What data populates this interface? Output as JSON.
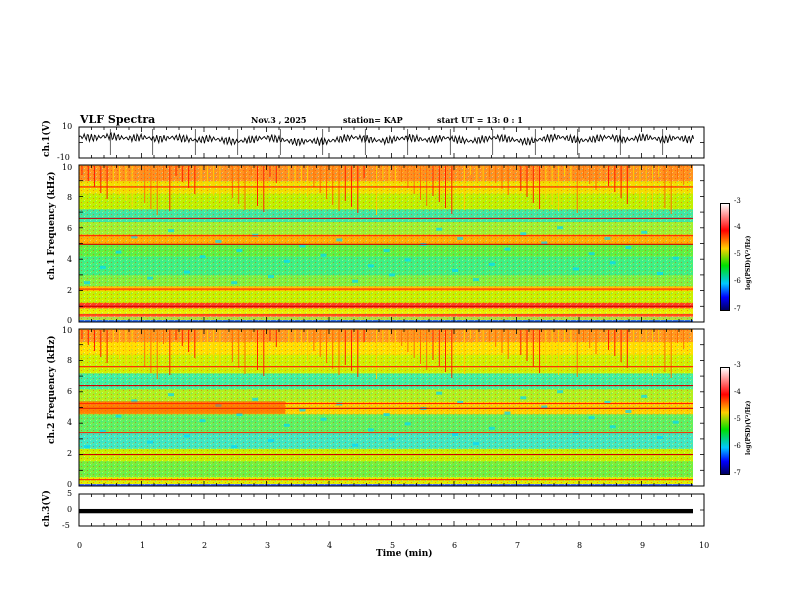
{
  "header": {
    "title": "VLF Spectra",
    "date": "Nov.3 , 2025",
    "station": "station= KAP",
    "start": "start UT = 13: 0 : 1"
  },
  "chart_data": [
    {
      "type": "line",
      "name": "ch1-waveform",
      "ylabel": "ch.1(V)",
      "ylim": [
        -10,
        10
      ],
      "yticks": [
        "10",
        "-10"
      ],
      "x_range_min": [
        0,
        9.85
      ],
      "values": [
        3.5,
        3.8,
        2.9,
        3.2,
        3.9,
        4.1,
        3.6,
        3.0,
        2.7,
        2.9,
        3.4,
        3.1,
        2.5,
        2.2,
        2.8,
        3.3,
        3.0,
        2.4,
        1.8,
        1.5,
        1.9,
        2.6,
        2.2,
        1.6,
        1.1,
        0.6,
        0.9,
        1.5,
        2.0,
        2.7,
        3.2,
        2.8,
        2.2,
        1.5,
        0.8,
        0.3,
        0.6,
        1.2,
        0.9,
        0.4,
        0.7,
        1.5,
        2.2,
        2.9,
        3.4,
        3.0,
        2.4,
        1.8,
        1.3,
        1.0,
        1.6,
        2.3,
        2.8,
        3.1,
        2.7,
        2.1,
        1.6,
        1.9,
        2.6,
        3.0,
        2.4,
        1.7,
        1.2,
        0.8,
        1.4,
        2.1,
        2.7,
        3.3,
        2.9,
        2.3,
        1.6,
        1.0,
        0.5,
        1.1,
        1.9,
        2.6,
        3.2,
        3.6,
        3.1,
        2.5,
        1.8,
        1.3,
        1.7,
        2.4,
        3.0,
        3.5,
        3.1,
        2.4,
        1.8,
        2.2,
        2.9,
        3.4,
        3.0,
        2.3,
        1.8,
        2.5,
        3.1,
        2.6,
        2.0,
        2.8
      ]
    },
    {
      "type": "heatmap",
      "name": "ch1-spectrogram",
      "ylabel": "ch.1 Frequency (kHz)",
      "ylim": [
        0,
        10
      ],
      "yticks": [
        "0",
        "2",
        "4",
        "6",
        "8",
        "10"
      ],
      "colorbar": {
        "label": "log(PSD)(V²/Hz)",
        "range": [
          -7,
          -3
        ],
        "ticks": [
          "-3",
          "-4",
          "-5",
          "-6",
          "-7"
        ]
      },
      "bands": [
        {
          "f0": 0.0,
          "f1": 0.15,
          "color": "#2060ff"
        },
        {
          "f0": 0.15,
          "f1": 0.35,
          "color": "#b0e040"
        },
        {
          "f0": 0.35,
          "f1": 0.55,
          "color": "#ff8040"
        },
        {
          "f0": 0.55,
          "f1": 0.9,
          "color": "#e8f000"
        },
        {
          "f0": 0.9,
          "f1": 1.25,
          "color": "#ff4020"
        },
        {
          "f0": 1.25,
          "f1": 2.0,
          "color": "#c8f000"
        },
        {
          "f0": 2.0,
          "f1": 2.3,
          "color": "#ffc000"
        },
        {
          "f0": 2.3,
          "f1": 3.0,
          "color": "#80f040"
        },
        {
          "f0": 3.0,
          "f1": 4.2,
          "color": "#40f080"
        },
        {
          "f0": 4.2,
          "f1": 5.0,
          "color": "#60f040"
        },
        {
          "f0": 5.0,
          "f1": 5.6,
          "color": "#ffb000"
        },
        {
          "f0": 5.6,
          "f1": 6.4,
          "color": "#a0f030"
        },
        {
          "f0": 6.4,
          "f1": 7.2,
          "color": "#40e8a0"
        },
        {
          "f0": 7.2,
          "f1": 8.2,
          "color": "#c0f000"
        },
        {
          "f0": 8.2,
          "f1": 9.0,
          "color": "#f0e000"
        },
        {
          "f0": 9.0,
          "f1": 10.0,
          "color": "#ff9020"
        }
      ],
      "lines_khz": [
        0.45,
        1.0,
        2.1,
        4.95,
        5.5,
        6.6,
        8.6
      ]
    },
    {
      "type": "heatmap",
      "name": "ch2-spectrogram",
      "ylabel": "ch.2 Frequency (kHz)",
      "ylim": [
        0,
        10
      ],
      "yticks": [
        "0",
        "2",
        "4",
        "6",
        "8",
        "10"
      ],
      "colorbar": {
        "label": "log(PSD)(V²/Hz)",
        "range": [
          -7,
          -3
        ],
        "ticks": [
          "-3",
          "-4",
          "-5",
          "-6",
          "-7"
        ]
      },
      "bands": [
        {
          "f0": 0.0,
          "f1": 0.15,
          "color": "#3050ff"
        },
        {
          "f0": 0.15,
          "f1": 0.6,
          "color": "#e0f000"
        },
        {
          "f0": 0.6,
          "f1": 1.6,
          "color": "#70f040"
        },
        {
          "f0": 1.6,
          "f1": 2.4,
          "color": "#c8f000"
        },
        {
          "f0": 2.4,
          "f1": 3.4,
          "color": "#40e8c0"
        },
        {
          "f0": 3.4,
          "f1": 4.6,
          "color": "#60f060"
        },
        {
          "f0": 4.6,
          "f1": 5.4,
          "color": "#ffd000"
        },
        {
          "f0": 5.4,
          "f1": 6.2,
          "color": "#b0f020"
        },
        {
          "f0": 6.2,
          "f1": 7.2,
          "color": "#40f0a0"
        },
        {
          "f0": 7.2,
          "f1": 8.4,
          "color": "#d0f000"
        },
        {
          "f0": 8.4,
          "f1": 9.2,
          "color": "#ffe000"
        },
        {
          "f0": 9.2,
          "f1": 10.0,
          "color": "#ff9820"
        }
      ],
      "lines_khz": [
        0.4,
        2.0,
        3.4,
        4.95,
        5.25,
        6.4,
        7.6
      ]
    },
    {
      "type": "line",
      "name": "ch3-waveform",
      "ylabel": "ch.3(V)",
      "ylim": [
        -5,
        5
      ],
      "yticks": [
        "5",
        "0",
        "-5"
      ],
      "x_range_min": [
        0,
        9.85
      ],
      "values": [
        -0.4,
        -0.3
      ]
    }
  ],
  "xaxis": {
    "label": "Time (min)",
    "xlim": [
      0,
      10
    ],
    "ticks": [
      "0",
      "1",
      "2",
      "3",
      "4",
      "5",
      "6",
      "7",
      "8",
      "9",
      "10"
    ]
  }
}
